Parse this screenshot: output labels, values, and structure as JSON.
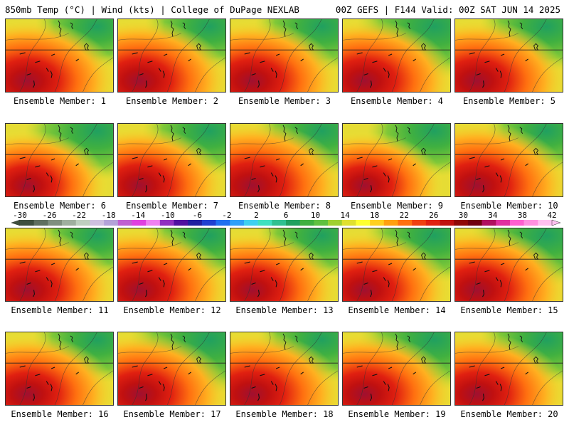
{
  "header": {
    "left": "850mb Temp (°C) | Wind (kts) | College of DuPage NEXLAB",
    "right": "00Z GEFS | F144 Valid: 00Z SAT JUN 14 2025"
  },
  "colorbar": {
    "ticks": [
      "-30",
      "-26",
      "-22",
      "-18",
      "-14",
      "-10",
      "-6",
      "-2",
      "2",
      "6",
      "10",
      "14",
      "18",
      "22",
      "26",
      "30",
      "34",
      "38",
      "42"
    ],
    "colors": [
      "#3e4f3e",
      "#5f6f5f",
      "#7f8f7f",
      "#9faf9f",
      "#bfcfbf",
      "#cfc0df",
      "#b4a2d8",
      "#c060d0",
      "#e040e0",
      "#f080f0",
      "#9030c0",
      "#5010a0",
      "#2020a0",
      "#2040d0",
      "#2070f0",
      "#30a0f8",
      "#40d0f0",
      "#40e0c0",
      "#30c090",
      "#20a060",
      "#40b040",
      "#60c040",
      "#a0d030",
      "#e0e030",
      "#ffff30",
      "#ffd020",
      "#ffa010",
      "#ff7010",
      "#f04010",
      "#e02010",
      "#c01010",
      "#900808",
      "#700010",
      "#b01060",
      "#e030a0",
      "#ff60d0",
      "#ff90e0",
      "#ffc0f0"
    ]
  },
  "panels": [
    {
      "label": "Ensemble Member: 1",
      "warmth": 0.85,
      "coolness": 0.35
    },
    {
      "label": "Ensemble Member: 2",
      "warmth": 0.85,
      "coolness": 0.4
    },
    {
      "label": "Ensemble Member: 3",
      "warmth": 0.8,
      "coolness": 0.45
    },
    {
      "label": "Ensemble Member: 4",
      "warmth": 0.85,
      "coolness": 0.65
    },
    {
      "label": "Ensemble Member: 5",
      "warmth": 0.85,
      "coolness": 0.45
    },
    {
      "label": "Ensemble Member: 6",
      "warmth": 0.6,
      "coolness": 0.55
    },
    {
      "label": "Ensemble Member: 7",
      "warmth": 0.75,
      "coolness": 0.45
    },
    {
      "label": "Ensemble Member: 8",
      "warmth": 0.95,
      "coolness": 0.45
    },
    {
      "label": "Ensemble Member: 9",
      "warmth": 0.55,
      "coolness": 0.45
    },
    {
      "label": "Ensemble Member: 10",
      "warmth": 0.95,
      "coolness": 0.35
    },
    {
      "label": "Ensemble Member: 11",
      "warmth": 0.85,
      "coolness": 0.35
    },
    {
      "label": "Ensemble Member: 12",
      "warmth": 0.9,
      "coolness": 0.4
    },
    {
      "label": "Ensemble Member: 13",
      "warmth": 0.75,
      "coolness": 0.4
    },
    {
      "label": "Ensemble Member: 14",
      "warmth": 0.75,
      "coolness": 0.5
    },
    {
      "label": "Ensemble Member: 15",
      "warmth": 0.9,
      "coolness": 0.6
    },
    {
      "label": "Ensemble Member: 16",
      "warmth": 0.8,
      "coolness": 0.4
    },
    {
      "label": "Ensemble Member: 17",
      "warmth": 0.85,
      "coolness": 0.7
    },
    {
      "label": "Ensemble Member: 18",
      "warmth": 0.9,
      "coolness": 0.4
    },
    {
      "label": "Ensemble Member: 19",
      "warmth": 0.85,
      "coolness": 0.6
    },
    {
      "label": "Ensemble Member: 20",
      "warmth": 0.85,
      "coolness": 0.45
    }
  ]
}
